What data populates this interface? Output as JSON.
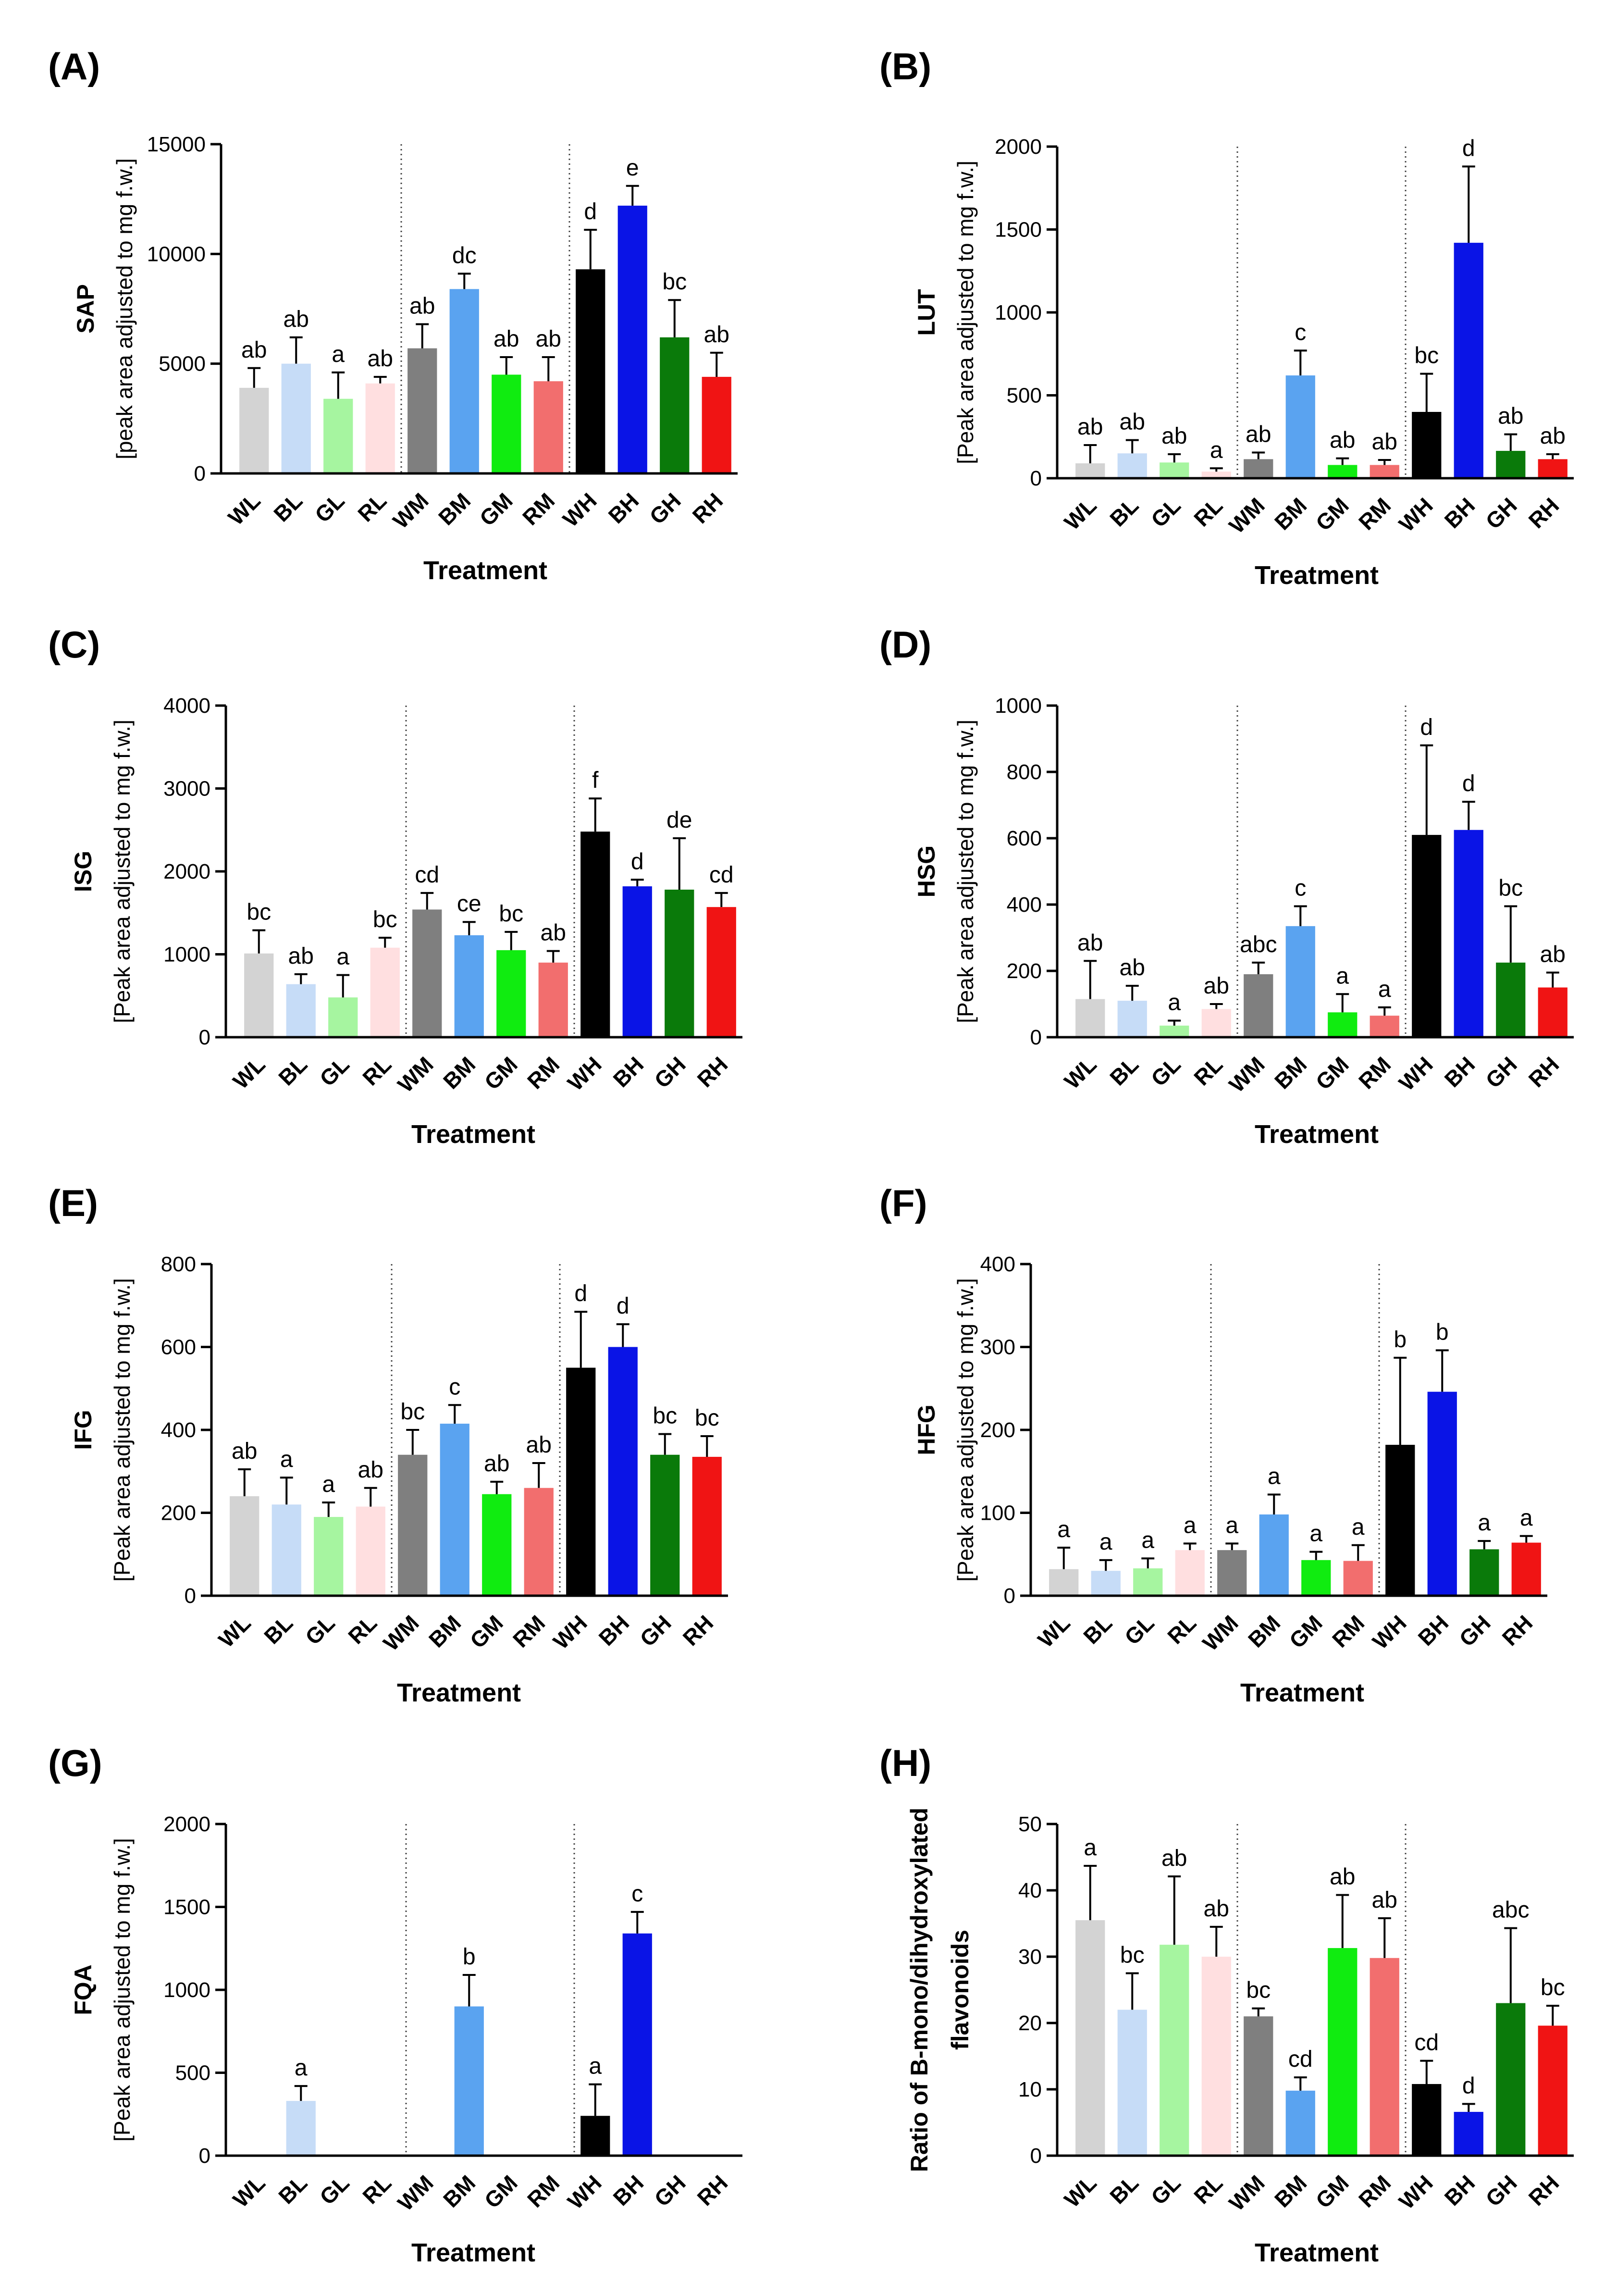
{
  "categories": [
    "WL",
    "BL",
    "GL",
    "RL",
    "WM",
    "BM",
    "GM",
    "RM",
    "WH",
    "BH",
    "GH",
    "RH"
  ],
  "colors": [
    "#d3d3d3",
    "#c6dcf7",
    "#a6f5a0",
    "#ffdfe0",
    "#7f7f7f",
    "#5aa3f0",
    "#10ec10",
    "#f26e6e",
    "#000000",
    "#0a14e6",
    "#0a7a0a",
    "#f01414"
  ],
  "chart_data": [
    {
      "panel": "(A)",
      "type": "bar",
      "ylabel": "SAP",
      "ylabel_sub": "[peak area adjusted to mg f.w.]",
      "xlabel": "Treatment",
      "ylim": [
        0,
        15000
      ],
      "yticks": [
        0,
        5000,
        10000,
        15000
      ],
      "yticks_text": [
        "0",
        "5000",
        "10000",
        "15000"
      ],
      "values": [
        3900,
        5000,
        3400,
        4100,
        5700,
        8400,
        4500,
        4200,
        9300,
        12200,
        6200,
        4400
      ],
      "errors": [
        900,
        1200,
        1200,
        300,
        1100,
        700,
        800,
        1100,
        1800,
        900,
        1700,
        1100
      ],
      "letters": [
        "ab",
        "ab",
        "a",
        "ab",
        "ab",
        "dc",
        "ab",
        "ab",
        "d",
        "e",
        "bc",
        "ab"
      ]
    },
    {
      "panel": "(B)",
      "type": "bar",
      "ylabel": "LUT",
      "ylabel_sub": "[Peak area adjusted to mg f.w.]",
      "xlabel": "Treatment",
      "ylim": [
        0,
        2000
      ],
      "yticks": [
        0,
        500,
        1000,
        1500,
        2000
      ],
      "yticks_text": [
        "0",
        "500",
        "1000",
        "1500",
        "2000"
      ],
      "values": [
        90,
        150,
        95,
        40,
        115,
        620,
        80,
        80,
        400,
        1420,
        165,
        115
      ],
      "errors": [
        110,
        80,
        50,
        20,
        40,
        150,
        40,
        30,
        230,
        460,
        100,
        30
      ],
      "letters": [
        "ab",
        "ab",
        "ab",
        "a",
        "ab",
        "c",
        "ab",
        "ab",
        "bc",
        "d",
        "ab",
        "ab"
      ]
    },
    {
      "panel": "(C)",
      "type": "bar",
      "ylabel": "ISG",
      "ylabel_sub": "[Peak area adjusted to mg f.w.]",
      "xlabel": "Treatment",
      "ylim": [
        0,
        4000
      ],
      "yticks": [
        0,
        1000,
        2000,
        3000,
        4000
      ],
      "yticks_text": [
        "0",
        "1000",
        "2000",
        "3000",
        "4000"
      ],
      "values": [
        1010,
        640,
        480,
        1080,
        1540,
        1230,
        1050,
        900,
        2480,
        1820,
        1780,
        1570
      ],
      "errors": [
        280,
        120,
        270,
        120,
        200,
        160,
        220,
        140,
        400,
        80,
        620,
        170
      ],
      "letters": [
        "bc",
        "ab",
        "a",
        "bc",
        "cd",
        "ce",
        "bc",
        "ab",
        "f",
        "d",
        "de",
        "cd"
      ]
    },
    {
      "panel": "(D)",
      "type": "bar",
      "ylabel": "HSG",
      "ylabel_sub": "[Peak area adjusted to mg f.w.]",
      "xlabel": "Treatment",
      "ylim": [
        0,
        1000
      ],
      "yticks": [
        0,
        200,
        400,
        600,
        800,
        1000
      ],
      "yticks_text": [
        "0",
        "200",
        "400",
        "600",
        "800",
        "1000"
      ],
      "values": [
        115,
        110,
        35,
        85,
        190,
        335,
        75,
        65,
        610,
        625,
        225,
        150
      ],
      "errors": [
        115,
        45,
        15,
        15,
        35,
        60,
        55,
        25,
        270,
        85,
        170,
        45
      ],
      "letters": [
        "ab",
        "ab",
        "a",
        "ab",
        "abc",
        "c",
        "a",
        "a",
        "d",
        "d",
        "bc",
        "ab"
      ]
    },
    {
      "panel": "(E)",
      "type": "bar",
      "ylabel": "IFG",
      "ylabel_sub": "[Peak area adjusted to mg f.w.]",
      "xlabel": "Treatment",
      "ylim": [
        0,
        800
      ],
      "yticks": [
        0,
        200,
        400,
        600,
        800
      ],
      "yticks_text": [
        "0",
        "200",
        "400",
        "600",
        "800"
      ],
      "values": [
        240,
        220,
        190,
        215,
        340,
        415,
        245,
        260,
        550,
        600,
        340,
        335
      ],
      "errors": [
        65,
        65,
        35,
        45,
        60,
        45,
        30,
        60,
        135,
        55,
        50,
        50
      ],
      "letters": [
        "ab",
        "a",
        "a",
        "ab",
        "bc",
        "c",
        "ab",
        "ab",
        "d",
        "d",
        "bc",
        "bc"
      ]
    },
    {
      "panel": "(F)",
      "type": "bar",
      "ylabel": "HFG",
      "ylabel_sub": "[Peak area adjusted to mg f.w.]",
      "xlabel": "Treatment",
      "ylim": [
        0,
        400
      ],
      "yticks": [
        0,
        100,
        200,
        300,
        400
      ],
      "yticks_text": [
        "0",
        "100",
        "200",
        "300",
        "400"
      ],
      "values": [
        32,
        30,
        33,
        55,
        55,
        98,
        43,
        42,
        182,
        246,
        56,
        64
      ],
      "errors": [
        26,
        13,
        12,
        8,
        8,
        24,
        10,
        19,
        105,
        50,
        10,
        8
      ],
      "letters": [
        "a",
        "a",
        "a",
        "a",
        "a",
        "a",
        "a",
        "a",
        "b",
        "b",
        "a",
        "a"
      ]
    },
    {
      "panel": "(G)",
      "type": "bar",
      "ylabel": "FQA",
      "ylabel_sub": "[Peak area adjusted to mg f.w.]",
      "xlabel": "Treatment",
      "ylim": [
        0,
        2000
      ],
      "yticks": [
        0,
        500,
        1000,
        1500,
        2000
      ],
      "yticks_text": [
        "0",
        "500",
        "1000",
        "1500",
        "2000"
      ],
      "values": [
        0,
        330,
        0,
        0,
        0,
        900,
        0,
        0,
        240,
        1340,
        0,
        0
      ],
      "errors": [
        0,
        90,
        0,
        0,
        0,
        190,
        0,
        0,
        190,
        130,
        0,
        0
      ],
      "letters": [
        "",
        "a",
        "",
        "",
        "",
        "b",
        "",
        "",
        "a",
        "c",
        "",
        ""
      ]
    },
    {
      "panel": "(H)",
      "type": "bar",
      "ylabel": "Ratio of B-mono/dihydroxylated",
      "ylabel_sub": "flavonoids",
      "xlabel": "Treatment",
      "ylim": [
        0,
        50
      ],
      "yticks": [
        0,
        10,
        20,
        30,
        40,
        50
      ],
      "yticks_text": [
        "0",
        "10",
        "20",
        "30",
        "40",
        "50"
      ],
      "values": [
        35.5,
        22,
        31.8,
        30,
        21,
        9.8,
        31.3,
        29.8,
        10.8,
        6.6,
        23,
        19.6
      ],
      "errors": [
        8.2,
        5.5,
        10.3,
        4.5,
        1.2,
        2,
        8,
        6,
        3.5,
        1.2,
        11.3,
        3
      ],
      "letters": [
        "a",
        "bc",
        "ab",
        "ab",
        "bc",
        "cd",
        "ab",
        "ab",
        "cd",
        "d",
        "abc",
        "bc"
      ]
    }
  ]
}
